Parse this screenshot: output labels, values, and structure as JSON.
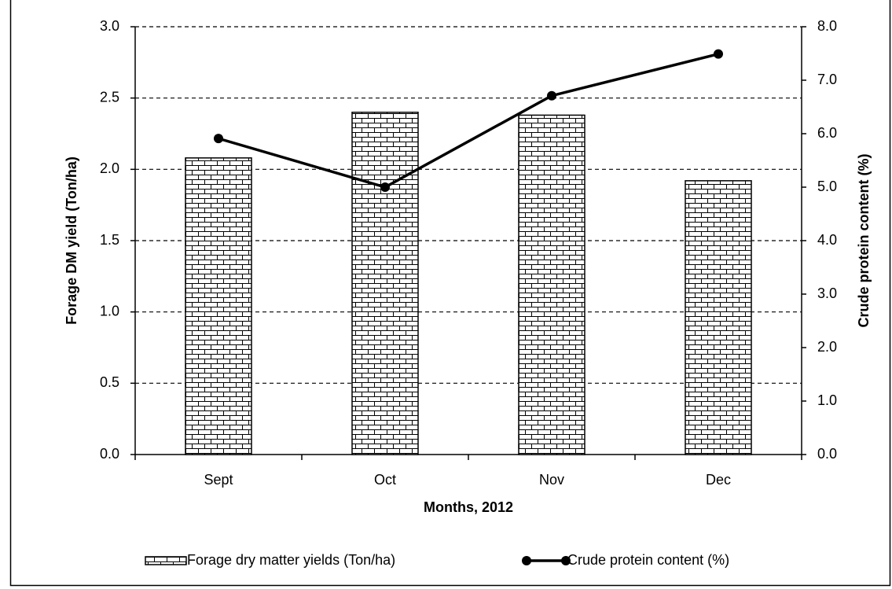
{
  "chart_data": {
    "type": "bar",
    "x_label": "Months, 2012",
    "y_label": "Forage DM yield (Ton/ha)",
    "y2_label": "Crude protein content (%)",
    "categories": [
      "Sept",
      "Oct",
      "Nov",
      "Dec"
    ],
    "series": [
      {
        "name": "Forage dry matter yields (Ton/ha)",
        "type": "bar",
        "color": "#000000",
        "values": [
          2.08,
          2.4,
          2.38,
          1.92
        ]
      },
      {
        "name": "Crude protein content (%)",
        "type": "line",
        "axis": "y2",
        "color": "#000000",
        "values": [
          5.91,
          5.0,
          6.71,
          7.49
        ]
      }
    ],
    "ylim": [
      0,
      3
    ],
    "yticks": [
      {
        "value": 0,
        "label": "0.0"
      },
      0.5,
      {
        "value": 1,
        "label": "1.0"
      },
      1.5,
      {
        "value": 2,
        "label": "2.0"
      },
      2.5,
      {
        "value": 3,
        "label": "3.0"
      }
    ],
    "y2lim": [
      0,
      8
    ],
    "y2ticks": [
      {
        "value": 0,
        "label": "0.0"
      },
      {
        "value": 1,
        "label": "1.0"
      },
      {
        "value": 2,
        "label": "2.0"
      },
      {
        "value": 3,
        "label": "3.0"
      },
      {
        "value": 4,
        "label": "4.0"
      },
      {
        "value": 5,
        "label": "5.0"
      },
      {
        "value": 6,
        "label": "6.0"
      },
      {
        "value": 7,
        "label": "7.0"
      },
      {
        "value": 8,
        "label": "8.0"
      }
    ],
    "grid": true,
    "legend": "bottom"
  }
}
